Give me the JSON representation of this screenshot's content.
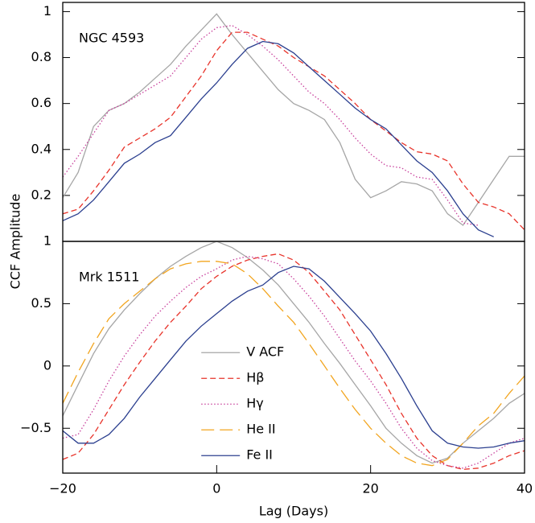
{
  "chart_data": [
    {
      "type": "line",
      "annotation": "NGC 4593",
      "y_label": "CCF Amplitude",
      "x": [
        -20,
        -18,
        -16,
        -14,
        -12,
        -10,
        -8,
        -6,
        -4,
        -2,
        0,
        2,
        4,
        6,
        8,
        10,
        12,
        14,
        16,
        18,
        20,
        22,
        24,
        26,
        28,
        30,
        32,
        34,
        36,
        38,
        40
      ],
      "xlim": [
        -20,
        40
      ],
      "ylim": [
        0,
        1.04
      ],
      "yticks": [
        0.2,
        0.4,
        0.6,
        0.8,
        1
      ],
      "series": [
        {
          "color": "#a6a6a6",
          "dash": "solid",
          "values": [
            0.19,
            0.3,
            0.5,
            0.57,
            0.6,
            0.65,
            0.71,
            0.77,
            0.85,
            0.92,
            0.99,
            0.9,
            0.82,
            0.74,
            0.66,
            0.6,
            0.57,
            0.53,
            0.43,
            0.27,
            0.19,
            0.22,
            0.26,
            0.25,
            0.22,
            0.12,
            0.07,
            0.17,
            0.27,
            0.37,
            0.37
          ]
        },
        {
          "color": "#c8409c",
          "dash": "dotted",
          "values": [
            0.28,
            0.37,
            0.47,
            0.57,
            0.6,
            0.64,
            0.68,
            0.72,
            0.8,
            0.88,
            0.93,
            0.94,
            0.9,
            0.85,
            0.79,
            0.72,
            0.65,
            0.6,
            0.53,
            0.45,
            0.38,
            0.33,
            0.32,
            0.28,
            0.27,
            0.18,
            0.08,
            0.07,
            null,
            null,
            null
          ]
        },
        {
          "color": "#e8332a",
          "dash": "dashed",
          "values": [
            0.12,
            0.14,
            0.22,
            0.31,
            0.41,
            0.45,
            0.49,
            0.54,
            0.63,
            0.72,
            0.83,
            0.91,
            0.91,
            0.88,
            0.85,
            0.8,
            0.76,
            0.72,
            0.66,
            0.6,
            0.53,
            0.48,
            0.43,
            0.39,
            0.38,
            0.35,
            0.25,
            0.17,
            0.15,
            0.12,
            0.05
          ]
        },
        {
          "color": "#2b3f8f",
          "dash": "solid",
          "values": [
            0.09,
            0.12,
            0.18,
            0.26,
            0.34,
            0.38,
            0.43,
            0.46,
            0.54,
            0.62,
            0.69,
            0.77,
            0.84,
            0.87,
            0.86,
            0.82,
            0.76,
            0.7,
            0.64,
            0.58,
            0.53,
            0.49,
            0.42,
            0.35,
            0.3,
            0.22,
            0.12,
            0.05,
            0.02,
            null,
            null
          ]
        }
      ]
    },
    {
      "type": "line",
      "annotation": "Mrk 1511",
      "x_label": "Lag (Days)",
      "legend": "center",
      "x": [
        -20,
        -18,
        -16,
        -14,
        -12,
        -10,
        -8,
        -6,
        -4,
        -2,
        0,
        2,
        4,
        6,
        8,
        10,
        12,
        14,
        16,
        18,
        20,
        22,
        24,
        26,
        28,
        30,
        32,
        34,
        36,
        38,
        40
      ],
      "xlim": [
        -20,
        40
      ],
      "ylim": [
        -0.86,
        1.0
      ],
      "xticks": [
        {
          "value": -20,
          "label": "−20"
        },
        0,
        20,
        40
      ],
      "yticks": [
        {
          "value": -0.5,
          "label": "−0.5"
        },
        0,
        0.5,
        1
      ],
      "series": [
        {
          "name": "V ACF",
          "color": "#a6a6a6",
          "dash": "solid",
          "values": [
            -0.4,
            -0.15,
            0.1,
            0.3,
            0.45,
            0.58,
            0.7,
            0.8,
            0.88,
            0.95,
            1.0,
            0.95,
            0.87,
            0.77,
            0.65,
            0.5,
            0.35,
            0.18,
            0.02,
            -0.15,
            -0.32,
            -0.5,
            -0.62,
            -0.72,
            -0.78,
            -0.74,
            -0.62,
            -0.52,
            -0.42,
            -0.3,
            -0.22
          ]
        },
        {
          "name": "Hβ",
          "color": "#e8332a",
          "dash": "dashed",
          "values": [
            -0.75,
            -0.7,
            -0.55,
            -0.35,
            -0.15,
            0.03,
            0.2,
            0.35,
            0.48,
            0.62,
            0.72,
            0.8,
            0.85,
            0.88,
            0.9,
            0.85,
            0.75,
            0.6,
            0.45,
            0.25,
            0.05,
            -0.15,
            -0.38,
            -0.58,
            -0.72,
            -0.8,
            -0.83,
            -0.82,
            -0.78,
            -0.72,
            -0.68
          ]
        },
        {
          "name": "Hγ",
          "color": "#c8409c",
          "dash": "dotted",
          "values": [
            -0.58,
            -0.55,
            -0.35,
            -0.12,
            0.08,
            0.25,
            0.4,
            0.52,
            0.63,
            0.72,
            0.78,
            0.85,
            0.88,
            0.86,
            0.82,
            0.7,
            0.56,
            0.4,
            0.22,
            0.04,
            -0.12,
            -0.3,
            -0.5,
            -0.66,
            -0.76,
            -0.8,
            -0.82,
            -0.78,
            -0.7,
            -0.62,
            -0.58
          ]
        },
        {
          "name": "He II",
          "color": "#f2a51f",
          "dash": "long",
          "values": [
            -0.3,
            -0.05,
            0.18,
            0.38,
            0.5,
            0.6,
            0.7,
            0.78,
            0.82,
            0.84,
            0.84,
            0.82,
            0.74,
            0.62,
            0.48,
            0.35,
            0.18,
            0.0,
            -0.18,
            -0.35,
            -0.5,
            -0.62,
            -0.72,
            -0.78,
            -0.8,
            -0.75,
            -0.62,
            -0.48,
            -0.38,
            -0.22,
            -0.08
          ]
        },
        {
          "name": "Fe II",
          "color": "#2b3f8f",
          "dash": "solid",
          "values": [
            -0.52,
            -0.62,
            -0.62,
            -0.55,
            -0.42,
            -0.25,
            -0.1,
            0.05,
            0.2,
            0.32,
            0.42,
            0.52,
            0.6,
            0.65,
            0.75,
            0.8,
            0.78,
            0.68,
            0.55,
            0.42,
            0.28,
            0.1,
            -0.1,
            -0.32,
            -0.52,
            -0.62,
            -0.65,
            -0.66,
            -0.65,
            -0.62,
            -0.6
          ]
        }
      ]
    }
  ]
}
